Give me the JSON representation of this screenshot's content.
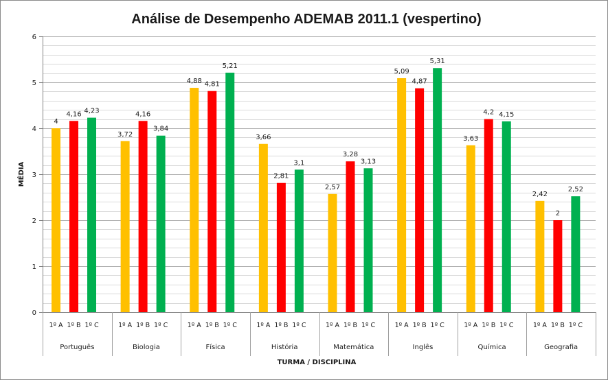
{
  "chart_data": {
    "type": "bar",
    "title": "Análise de Desempenho ADEMAB 2011.1 (vespertino)",
    "xlabel": "TURMA / DISCIPLINA",
    "ylabel": "MÉDIA",
    "ylim": [
      0,
      6
    ],
    "yticks": [
      "0",
      "1",
      "2",
      "3",
      "4",
      "5",
      "6"
    ],
    "grid": true,
    "legend": "none",
    "categories": [
      "Português",
      "Biologia",
      "Física",
      "História",
      "Matemática",
      "Inglês",
      "Química",
      "Geografia"
    ],
    "classes": [
      "1º A",
      "1º B",
      "1º C"
    ],
    "series": [
      {
        "color": "#FFC000",
        "values": [
          4,
          3.72,
          4.88,
          3.66,
          2.57,
          5.09,
          3.63,
          2.42
        ],
        "labels": [
          "4",
          "3,72",
          "4,88",
          "3,66",
          "2,57",
          "5,09",
          "3,63",
          "2,42"
        ]
      },
      {
        "color": "#FF0000",
        "values": [
          4.16,
          4.16,
          4.81,
          2.81,
          3.28,
          4.87,
          4.2,
          2
        ],
        "labels": [
          "4,16",
          "4,16",
          "4,81",
          "2,81",
          "3,28",
          "4,87",
          "4,2",
          "2"
        ]
      },
      {
        "color": "#00B050",
        "values": [
          4.23,
          3.84,
          5.21,
          3.1,
          3.13,
          5.31,
          4.15,
          2.52
        ],
        "labels": [
          "4,23",
          "3,84",
          "5,21",
          "3,1",
          "3,13",
          "5,31",
          "4,15",
          "2,52"
        ]
      }
    ]
  }
}
